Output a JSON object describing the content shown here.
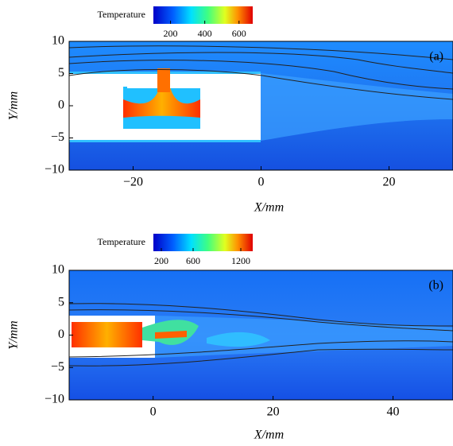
{
  "chart_data": [
    {
      "type": "heatmap",
      "panel_label": "(a)",
      "colorbar_label": "Temperature",
      "colorbar_lim": [
        100,
        680
      ],
      "colorbar_ticks": [
        200,
        400,
        600
      ],
      "xlabel": "X/mm",
      "ylabel": "Y/mm",
      "xlim": [
        -30,
        30
      ],
      "ylim": [
        -10,
        10
      ],
      "xticks": [
        {
          "value": -20,
          "label": "−20"
        },
        0,
        20
      ],
      "yticks": [
        {
          "value": -10,
          "label": "−10"
        },
        {
          "value": -5,
          "label": "−5"
        },
        0,
        5,
        10
      ]
    },
    {
      "type": "heatmap",
      "panel_label": "(b)",
      "colorbar_label": "Temperature",
      "colorbar_lim": [
        100,
        1350
      ],
      "colorbar_ticks": [
        200,
        600,
        1200
      ],
      "xlabel": "X/mm",
      "ylabel": "Y/mm",
      "xlim": [
        -14,
        50
      ],
      "ylim": [
        -10,
        10
      ],
      "xticks": [
        0,
        20,
        40
      ],
      "yticks": [
        {
          "value": -10,
          "label": "−10"
        },
        {
          "value": -5,
          "label": "−5"
        },
        0,
        5,
        10
      ]
    }
  ]
}
